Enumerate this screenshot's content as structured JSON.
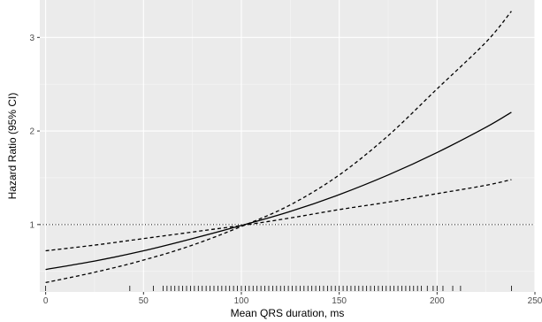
{
  "chart_data": {
    "type": "line",
    "title": "",
    "xlabel": "Mean QRS duration, ms",
    "ylabel": "Hazard Ratio (95% CI)",
    "xlim": [
      -3,
      250
    ],
    "ylim": [
      0.28,
      3.4
    ],
    "x_ticks": [
      0,
      50,
      100,
      150,
      200,
      250
    ],
    "x_tick_labels": [
      "0",
      "50",
      "100",
      "150",
      "200",
      "250"
    ],
    "y_ticks": [
      1,
      2,
      3
    ],
    "y_tick_labels": [
      "1",
      "2",
      "3"
    ],
    "grid": true,
    "legend": "none",
    "reference_line": {
      "y": 1,
      "style": "dotted"
    },
    "series": [
      {
        "style": "solid",
        "x": [
          0,
          25,
          50,
          75,
          100,
          125,
          150,
          175,
          200,
          225,
          238
        ],
        "y": [
          0.52,
          0.61,
          0.72,
          0.85,
          0.99,
          1.14,
          1.32,
          1.53,
          1.77,
          2.04,
          2.2
        ]
      },
      {
        "style": "dashed",
        "x": [
          0,
          25,
          50,
          75,
          100,
          125,
          150,
          175,
          200,
          225,
          238
        ],
        "y": [
          0.72,
          0.78,
          0.85,
          0.92,
          0.99,
          1.07,
          1.16,
          1.24,
          1.33,
          1.42,
          1.48
        ]
      },
      {
        "style": "dashed",
        "x": [
          0,
          25,
          50,
          75,
          100,
          125,
          150,
          175,
          200,
          225,
          238
        ],
        "y": [
          0.38,
          0.49,
          0.62,
          0.78,
          0.98,
          1.21,
          1.53,
          1.95,
          2.45,
          2.95,
          3.28
        ]
      }
    ],
    "rug": [
      0,
      43,
      55,
      60,
      62,
      64,
      66,
      68,
      70,
      72,
      74,
      76,
      78,
      80,
      82,
      84,
      86,
      88,
      90,
      92,
      94,
      96,
      98,
      100,
      102,
      104,
      106,
      108,
      110,
      112,
      114,
      116,
      118,
      120,
      122,
      124,
      126,
      128,
      130,
      132,
      134,
      136,
      138,
      140,
      142,
      144,
      146,
      148,
      150,
      152,
      154,
      156,
      158,
      160,
      162,
      164,
      166,
      168,
      170,
      172,
      174,
      176,
      178,
      180,
      182,
      184,
      186,
      188,
      190,
      192,
      195,
      198,
      200,
      203,
      208,
      212,
      238
    ]
  }
}
